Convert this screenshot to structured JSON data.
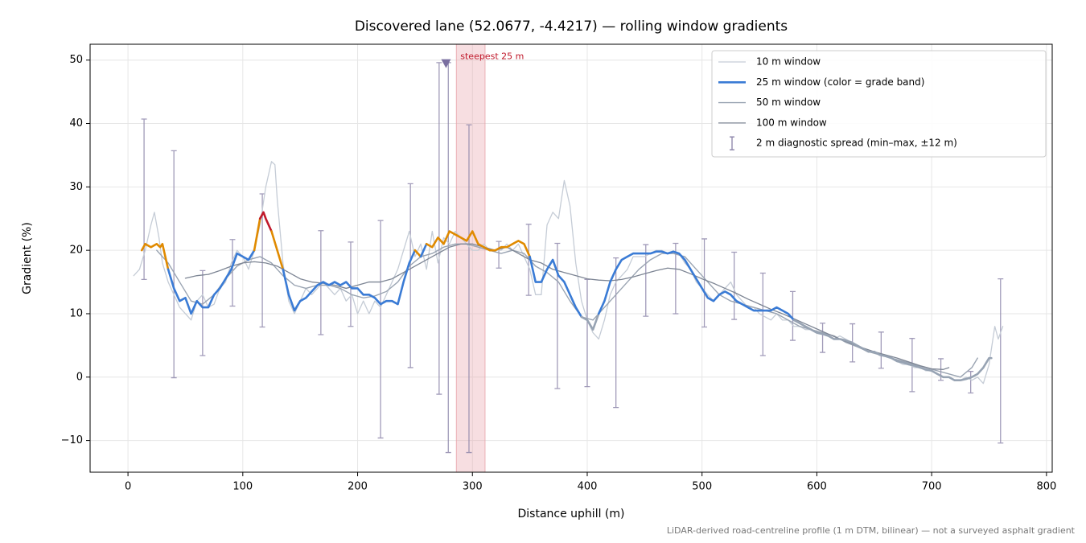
{
  "chart_data": {
    "type": "line",
    "title": "Discovered lane (52.0677, -4.4217) — rolling window gradients",
    "x_label": "Distance uphill (m)",
    "y_label": "Gradient (%)",
    "footnote": "LiDAR-derived road-centreline profile (1 m DTM, bilinear) — not a surveyed asphalt gradient",
    "xlim": [
      -33,
      805
    ],
    "ylim": [
      -15,
      52.5
    ],
    "xticks": [
      0,
      100,
      200,
      300,
      400,
      500,
      600,
      700,
      800
    ],
    "yticks": [
      {
        "value": -10,
        "label": "−10"
      },
      0,
      10,
      20,
      30,
      40,
      50
    ],
    "grid": true,
    "legend": "upper right",
    "series": [
      {
        "name": "10 m window",
        "color": "#c5ccd6",
        "linewidth": 1.3,
        "x": [
          5,
          10,
          15,
          20,
          23,
          27,
          30,
          35,
          40,
          45,
          50,
          55,
          60,
          65,
          70,
          75,
          80,
          85,
          90,
          95,
          100,
          105,
          110,
          115,
          120,
          125,
          128,
          130,
          135,
          140,
          145,
          150,
          155,
          160,
          165,
          170,
          175,
          180,
          185,
          190,
          195,
          200,
          205,
          210,
          215,
          220,
          225,
          230,
          235,
          240,
          245,
          250,
          255,
          260,
          265,
          270,
          275,
          280,
          285,
          290,
          295,
          300,
          305,
          310,
          315,
          320,
          325,
          330,
          335,
          340,
          345,
          350,
          355,
          360,
          365,
          370,
          375,
          380,
          385,
          390,
          395,
          400,
          405,
          410,
          415,
          420,
          425,
          430,
          435,
          440,
          445,
          450,
          455,
          460,
          465,
          470,
          475,
          480,
          485,
          490,
          495,
          500,
          505,
          510,
          515,
          520,
          525,
          530,
          535,
          540,
          545,
          550,
          555,
          560,
          565,
          570,
          575,
          580,
          585,
          590,
          595,
          600,
          605,
          610,
          615,
          620,
          625,
          630,
          635,
          640,
          645,
          650,
          655,
          660,
          665,
          670,
          675,
          680,
          685,
          690,
          695,
          700,
          705,
          710,
          715,
          720,
          725,
          730,
          735,
          740,
          745,
          750,
          755,
          758,
          762
        ],
        "values": [
          16,
          17,
          20,
          24,
          26,
          22,
          18,
          15,
          13,
          11,
          10,
          9,
          12,
          13,
          11,
          11.5,
          14,
          15,
          18,
          20,
          19,
          17,
          20,
          24,
          30,
          34,
          33.5,
          28,
          18,
          12,
          10,
          12,
          14,
          13,
          14,
          15,
          14,
          13,
          14,
          12,
          13,
          10,
          12,
          10,
          12,
          11,
          13,
          15,
          17,
          20,
          23,
          19,
          21,
          17,
          23,
          18,
          22,
          21,
          23,
          22,
          21,
          20,
          20,
          21,
          20,
          20,
          20,
          21,
          20,
          21,
          19,
          17,
          13,
          13,
          24,
          26,
          25,
          31,
          27,
          18,
          12,
          9,
          7,
          6,
          9,
          13,
          15,
          16,
          17,
          19,
          19,
          19,
          19.5,
          20,
          20,
          19.5,
          19.5,
          19.5,
          18,
          17,
          15,
          14,
          13,
          12,
          13,
          14,
          15,
          13,
          12,
          11,
          11,
          10,
          9.5,
          9,
          10,
          9,
          9,
          8,
          8,
          7.5,
          7.5,
          7,
          7,
          6.5,
          6,
          6.5,
          6,
          5.5,
          5,
          4.5,
          4,
          4,
          3.5,
          3.5,
          3,
          2.5,
          2,
          2,
          1.5,
          1.5,
          1,
          1,
          0.5,
          0,
          0,
          -0.5,
          -0.5,
          0,
          -0.5,
          0,
          -1,
          2,
          8,
          6,
          8
        ]
      },
      {
        "name": "25 m window (color = grade band)",
        "color": "#3a7bd5",
        "linewidth": 2.6,
        "band_thresholds": [
          10,
          20,
          25
        ],
        "band_colors": [
          "#97a3b3",
          "#3a7bd5",
          "#e08a00",
          "#c0182a"
        ],
        "x": [
          12,
          15,
          20,
          25,
          28,
          30,
          35,
          40,
          45,
          50,
          55,
          60,
          65,
          70,
          75,
          80,
          85,
          90,
          95,
          100,
          105,
          110,
          115,
          118,
          120,
          125,
          130,
          135,
          140,
          145,
          150,
          155,
          160,
          165,
          170,
          175,
          180,
          185,
          190,
          195,
          200,
          205,
          210,
          215,
          220,
          225,
          230,
          235,
          240,
          245,
          250,
          255,
          260,
          265,
          270,
          275,
          280,
          285,
          290,
          295,
          300,
          305,
          310,
          315,
          320,
          325,
          330,
          335,
          340,
          345,
          350,
          355,
          360,
          365,
          370,
          375,
          380,
          385,
          390,
          395,
          400,
          405,
          410,
          415,
          420,
          425,
          430,
          435,
          440,
          445,
          450,
          455,
          460,
          465,
          470,
          475,
          480,
          485,
          490,
          495,
          500,
          505,
          510,
          515,
          520,
          525,
          530,
          535,
          540,
          545,
          550,
          555,
          560,
          565,
          570,
          575,
          580,
          585,
          590,
          595,
          600,
          605,
          610,
          615,
          620,
          625,
          630,
          635,
          640,
          645,
          650,
          655,
          660,
          665,
          670,
          675,
          680,
          685,
          690,
          695,
          700,
          705,
          710,
          715,
          720,
          725,
          730,
          735,
          740,
          745,
          750,
          752
        ],
        "values": [
          20,
          21,
          20.5,
          21,
          20.5,
          21,
          17,
          14,
          12,
          12.5,
          10,
          12,
          11,
          11,
          13,
          14,
          15.5,
          17,
          19.5,
          19,
          18.5,
          20,
          25,
          26,
          25,
          23,
          20,
          17,
          13,
          10.5,
          12,
          12.5,
          13.5,
          14.5,
          15,
          14.5,
          15,
          14.5,
          15,
          14,
          14,
          13,
          13,
          12.5,
          11.5,
          12,
          12,
          11.5,
          15,
          18,
          20,
          19,
          21,
          20.5,
          22,
          21,
          23,
          22.5,
          22,
          21.5,
          23,
          21,
          20.5,
          20,
          20,
          20.5,
          20.5,
          21,
          21.5,
          21,
          19,
          15,
          15,
          17,
          18.5,
          16,
          15,
          13,
          11,
          9.5,
          9,
          7.5,
          10,
          12,
          15,
          17,
          18.5,
          19,
          19.5,
          19.5,
          19.5,
          19.5,
          19.8,
          19.8,
          19.5,
          19.8,
          19.5,
          18.5,
          17,
          15.5,
          14,
          12.5,
          12,
          13,
          13.5,
          13,
          12,
          11.5,
          11,
          10.5,
          10.5,
          10.5,
          10.5,
          11,
          10.5,
          10,
          9,
          8.5,
          8,
          7.5,
          7,
          6.8,
          6.5,
          6,
          6,
          5.8,
          5.5,
          5,
          4.5,
          4,
          4,
          3.5,
          3.3,
          3,
          2.5,
          2.3,
          2,
          1.8,
          1.5,
          1.2,
          1,
          0.5,
          0,
          0,
          -0.5,
          -0.5,
          -0.3,
          0,
          0.5,
          1.5,
          3,
          3
        ]
      },
      {
        "name": "50 m window",
        "color": "#9aa4b2",
        "linewidth": 1.4,
        "x": [
          25,
          35,
          45,
          55,
          65,
          75,
          85,
          95,
          105,
          115,
          125,
          135,
          145,
          155,
          165,
          175,
          185,
          195,
          205,
          215,
          225,
          235,
          245,
          255,
          265,
          275,
          285,
          295,
          305,
          315,
          325,
          335,
          345,
          355,
          365,
          375,
          385,
          395,
          405,
          415,
          425,
          435,
          445,
          455,
          465,
          475,
          485,
          495,
          505,
          515,
          525,
          535,
          545,
          555,
          565,
          575,
          585,
          595,
          605,
          615,
          625,
          635,
          645,
          655,
          665,
          675,
          685,
          695,
          705,
          715,
          725,
          735,
          740
        ],
        "values": [
          20,
          18,
          15,
          12,
          11.5,
          13,
          15.5,
          17.5,
          18.5,
          19,
          18,
          16,
          14.5,
          14,
          14.5,
          14.5,
          14,
          13,
          12.5,
          12.8,
          13.5,
          15,
          17.5,
          19,
          19.5,
          20.5,
          21,
          21,
          20.5,
          20,
          19.5,
          20,
          19.5,
          17.5,
          16.5,
          15,
          12,
          9.5,
          9,
          11,
          13,
          15,
          17,
          18.5,
          19.5,
          19.5,
          19,
          17,
          15,
          13,
          12,
          11.5,
          11,
          10.5,
          10,
          9,
          8,
          7.5,
          7,
          6.5,
          5.5,
          4.8,
          4,
          3.5,
          3,
          2.5,
          2,
          1.5,
          1,
          0.5,
          0,
          1.5,
          3
        ]
      },
      {
        "name": "100 m window",
        "color": "#7d8594",
        "linewidth": 1.3,
        "x": [
          50,
          60,
          70,
          80,
          90,
          100,
          110,
          120,
          130,
          140,
          150,
          160,
          170,
          180,
          190,
          200,
          210,
          220,
          230,
          240,
          250,
          260,
          270,
          280,
          290,
          300,
          310,
          320,
          330,
          340,
          350,
          360,
          370,
          380,
          390,
          400,
          410,
          420,
          430,
          440,
          450,
          460,
          470,
          480,
          490,
          500,
          510,
          520,
          530,
          540,
          550,
          560,
          570,
          580,
          590,
          600,
          610,
          620,
          630,
          640,
          650,
          660,
          670,
          680,
          690,
          700,
          710,
          715
        ],
        "values": [
          15.6,
          16,
          16.2,
          16.8,
          17.5,
          18,
          18.2,
          18,
          17.5,
          16.5,
          15.5,
          15,
          14.8,
          14.5,
          14,
          14.5,
          15,
          15,
          15.5,
          16.5,
          17.5,
          18.5,
          19.5,
          20.5,
          21,
          21,
          20.5,
          20,
          20.5,
          19.5,
          18.5,
          18,
          17,
          16.5,
          16,
          15.5,
          15.3,
          15.2,
          15.4,
          15.8,
          16.3,
          16.8,
          17.2,
          17,
          16.3,
          15.5,
          14.8,
          14,
          13.2,
          12.3,
          11.5,
          10.7,
          10,
          9.2,
          8.4,
          7.6,
          6.8,
          6,
          5.3,
          4.6,
          4,
          3.5,
          3,
          2.4,
          1.8,
          1.3,
          1.2,
          1.5
        ]
      }
    ],
    "errorbars": {
      "name": "2 m diagnostic spread (min–max, ±12 m)",
      "color": "#8a82a8",
      "x": [
        14,
        40,
        65,
        91,
        117,
        168,
        194,
        220,
        246,
        271,
        279,
        297,
        323,
        349,
        374,
        400,
        425,
        451,
        477,
        502,
        528,
        553,
        579,
        605,
        631,
        656,
        683,
        708,
        734,
        760
      ],
      "low": [
        15.4,
        -0.1,
        3.4,
        11.2,
        7.9,
        6.7,
        8,
        -9.6,
        1.5,
        -2.7,
        -11.9,
        -11.9,
        17.2,
        12.9,
        -1.8,
        -1.5,
        -4.8,
        9.6,
        10,
        7.9,
        9.1,
        3.4,
        5.8,
        3.9,
        2.4,
        1.4,
        -2.3,
        -0.5,
        -2.5,
        -10.4
      ],
      "high": [
        40.7,
        35.7,
        16.8,
        21.7,
        28.9,
        23.1,
        21.3,
        24.7,
        30.5,
        49.6,
        49.6,
        39.8,
        21.4,
        24.1,
        21.1,
        15.4,
        18.8,
        20.9,
        21.1,
        21.8,
        19.7,
        16.4,
        13.5,
        8.5,
        8.4,
        7.1,
        6.1,
        2.9,
        0.9,
        15.5
      ]
    },
    "highlight": {
      "label": "steepest 25 m",
      "span": [
        286,
        311
      ],
      "span_color": "#e8a0a8",
      "label_color": "#c0182a",
      "marker_x": 277,
      "marker_y": 49.5,
      "marker_color": "#7a6fa0"
    }
  }
}
